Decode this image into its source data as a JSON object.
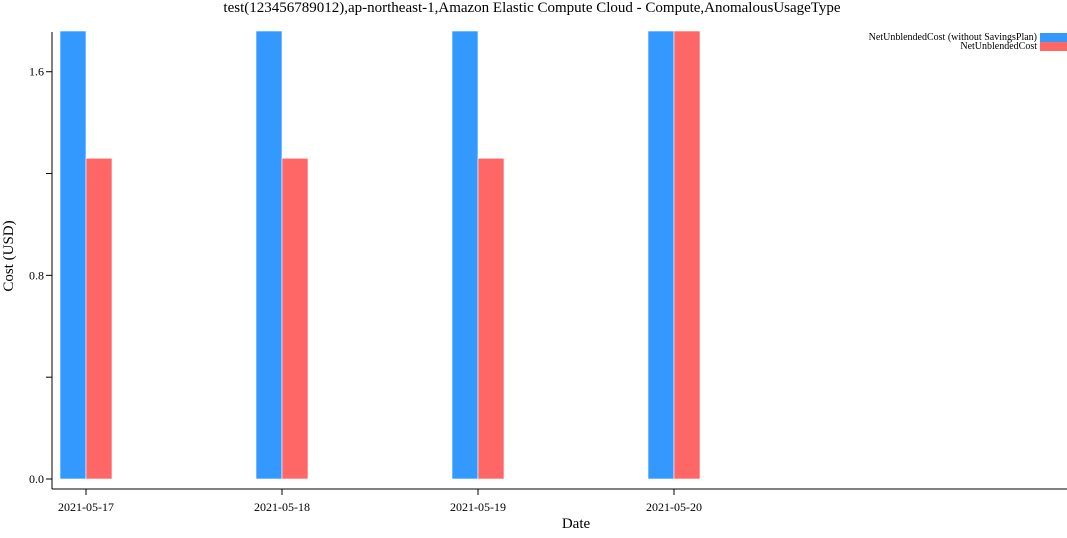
{
  "chart_data": {
    "type": "bar",
    "title": "test(123456789012),ap-northeast-1,Amazon Elastic Compute Cloud - Compute,AnomalousUsageType",
    "xlabel": "Date",
    "ylabel": "Cost (USD)",
    "categories": [
      "2021-05-17",
      "2021-05-18",
      "2021-05-19",
      "2021-05-20"
    ],
    "series": [
      {
        "name": "NetUnblendedCost (without SavingsPlan)",
        "color": "#3399ff",
        "values": [
          1.76,
          1.76,
          1.76,
          1.76
        ]
      },
      {
        "name": "NetUnblendedCost",
        "color": "#ff6666",
        "values": [
          1.26,
          1.26,
          1.26,
          1.76
        ]
      }
    ],
    "ylim": [
      0,
      1.76
    ],
    "y_ticks": [
      0.0,
      0.4,
      0.8,
      1.2,
      1.6
    ],
    "y_tick_labels": [
      "0.0",
      "",
      "0.8",
      "",
      "1.6"
    ],
    "grid": false,
    "legend_position": "top-right"
  }
}
